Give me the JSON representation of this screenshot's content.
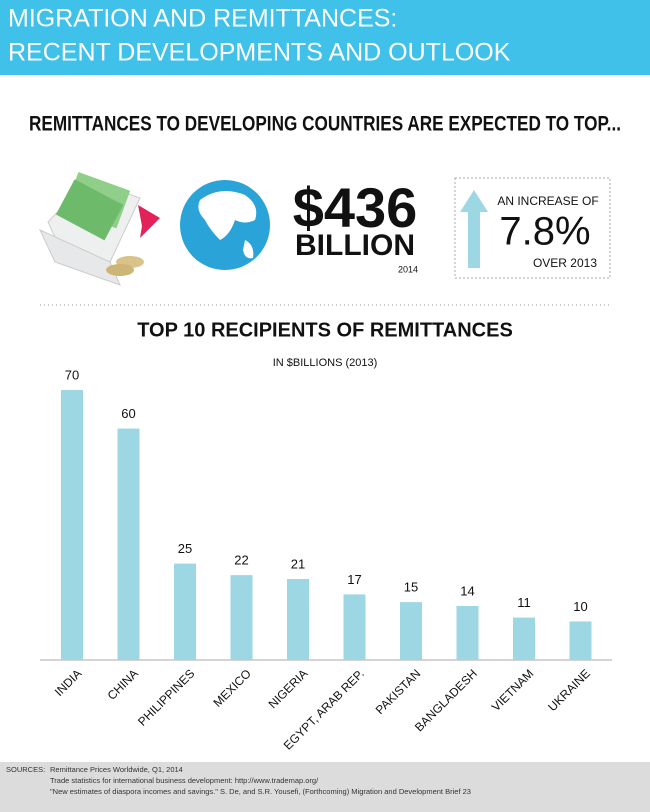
{
  "header": {
    "title_line1": "MIGRATION AND REMITTANCES:",
    "title_line2": "RECENT DEVELOPMENTS AND OUTLOOK"
  },
  "headline": "REMITTANCES TO DEVELOPING COUNTRIES ARE EXPECTED TO TOP...",
  "stats": {
    "amount": "$436",
    "unit": "BILLION",
    "year": "2014",
    "increase_label": "AN INCREASE OF",
    "increase": "7.8%",
    "increase_base": "OVER 2013"
  },
  "chart_data": {
    "type": "bar",
    "title": "TOP 10 RECIPIENTS OF REMITTANCES",
    "subtitle": "IN $BILLIONS (2013)",
    "categories": [
      "INDIA",
      "CHINA",
      "PHILIPPINES",
      "MEXICO",
      "NIGERIA",
      "EGYPT, ARAB REP.",
      "PAKISTAN",
      "BANGLADESH",
      "VIETNAM",
      "UKRAINE"
    ],
    "values": [
      70,
      60,
      25,
      22,
      21,
      17,
      15,
      14,
      11,
      10
    ],
    "color": "#9dd7e4",
    "ylim": [
      0,
      70
    ]
  },
  "sources": {
    "label": "SOURCES:",
    "lines": [
      "Remittance Prices Worldwide, Q1, 2014",
      "Trade statistics for international business development: http://www.trademap.org/",
      "\"New estimates of diaspora incomes and savings.\" S. De, and S.R. Yousefi, (Forthcoming) Migration and Development Brief 23"
    ]
  }
}
